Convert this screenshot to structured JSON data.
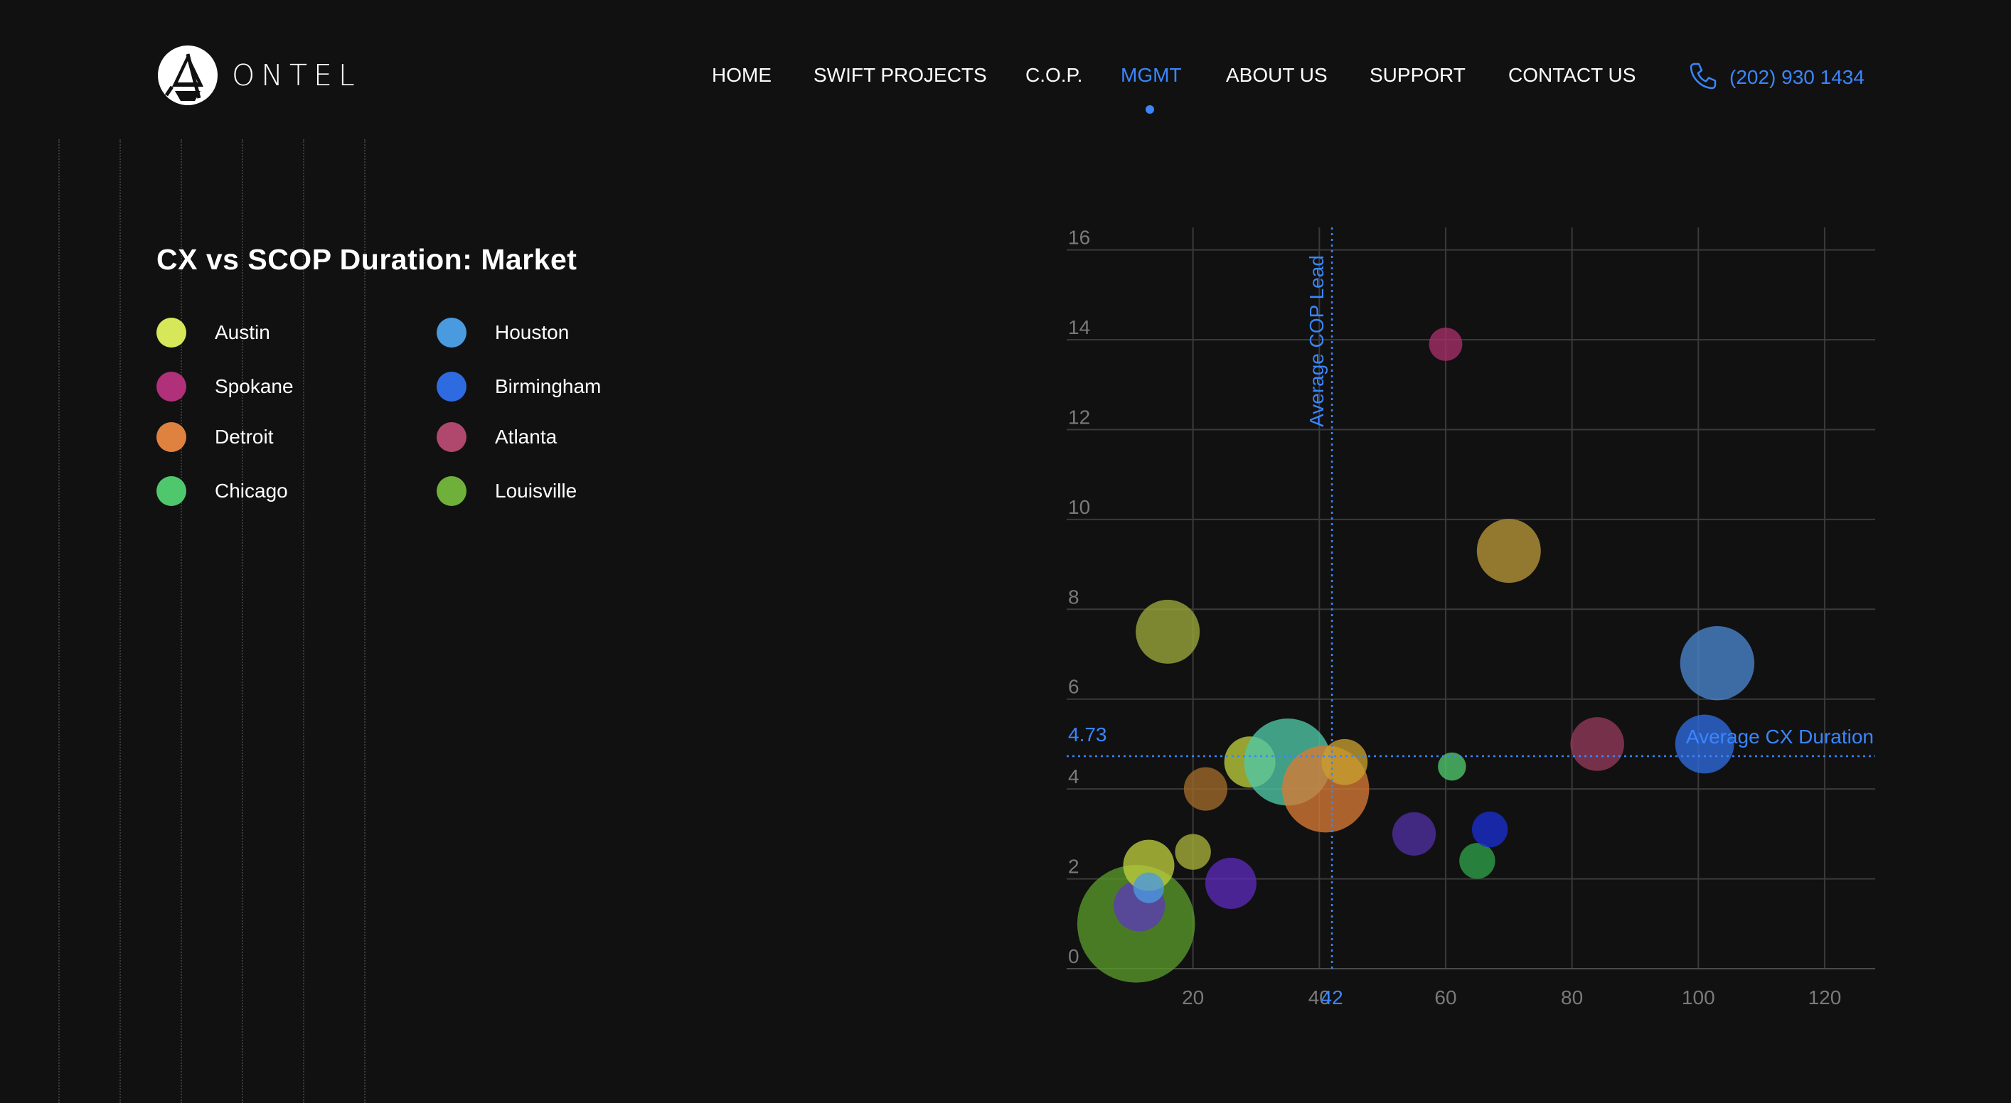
{
  "brand": {
    "name": "ONTEL"
  },
  "nav": {
    "items": [
      {
        "label": "HOME",
        "active": false
      },
      {
        "label": "SWIFT PROJECTS",
        "active": false
      },
      {
        "label": "C.O.P.",
        "active": false
      },
      {
        "label": "MGMT",
        "active": true
      },
      {
        "label": "ABOUT US",
        "active": false
      },
      {
        "label": "SUPPORT",
        "active": false
      },
      {
        "label": "CONTACT US",
        "active": false
      }
    ],
    "phone": "(202) 930 1434",
    "phone_icon": "phone-icon",
    "accent_color": "#3a86ff"
  },
  "chart_data": {
    "type": "scatter",
    "title": "CX vs SCOP Duration: Market",
    "xlim": [
      0,
      128
    ],
    "ylim": [
      0,
      16.5
    ],
    "xticks": [
      20,
      40,
      60,
      80,
      100,
      120
    ],
    "yticks": [
      0,
      2,
      4,
      6,
      8,
      10,
      12,
      14,
      16
    ],
    "grid": true,
    "legend_position": "top-left",
    "legend": [
      {
        "name": "Austin",
        "color": "#d6e85a"
      },
      {
        "name": "Spokane",
        "color": "#b0307a"
      },
      {
        "name": "Detroit",
        "color": "#e0823f"
      },
      {
        "name": "Chicago",
        "color": "#4fc86d"
      },
      {
        "name": "Houston",
        "color": "#4a9ae0"
      },
      {
        "name": "Birmingham",
        "color": "#2f6be0"
      },
      {
        "name": "Atlanta",
        "color": "#b0486e"
      },
      {
        "name": "Louisville",
        "color": "#6fb03a"
      }
    ],
    "reference_lines": {
      "x": {
        "value": 42,
        "label": "Average COP Lead",
        "tick_label": "42"
      },
      "y": {
        "value": 4.73,
        "label": "Average CX Duration",
        "tick_label": "4.73"
      }
    },
    "points": [
      {
        "x": 11,
        "y": 1,
        "size": 46,
        "color": "#5a9a2a"
      },
      {
        "x": 11.5,
        "y": 1.4,
        "size": 20,
        "color": "#5b3ab8"
      },
      {
        "x": 13,
        "y": 2.3,
        "size": 20,
        "color": "#bccd3c"
      },
      {
        "x": 13,
        "y": 1.8,
        "size": 12,
        "color": "#4a9ae0"
      },
      {
        "x": 16,
        "y": 7.5,
        "size": 25,
        "color": "#9ca83a"
      },
      {
        "x": 20,
        "y": 2.6,
        "size": 14,
        "color": "#a8b03a"
      },
      {
        "x": 22,
        "y": 4,
        "size": 17,
        "color": "#a06a2a"
      },
      {
        "x": 26,
        "y": 1.9,
        "size": 20,
        "color": "#5b2ab8"
      },
      {
        "x": 29,
        "y": 4.6,
        "size": 20,
        "color": "#bccd3c"
      },
      {
        "x": 35,
        "y": 4.6,
        "size": 34,
        "color": "#4fc8a8"
      },
      {
        "x": 41,
        "y": 4,
        "size": 34,
        "color": "#d97a35"
      },
      {
        "x": 44,
        "y": 4.6,
        "size": 18,
        "color": "#c8a030"
      },
      {
        "x": 55,
        "y": 3,
        "size": 17,
        "color": "#5030a0"
      },
      {
        "x": 60,
        "y": 13.9,
        "size": 13,
        "color": "#a8306a"
      },
      {
        "x": 61,
        "y": 4.5,
        "size": 11,
        "color": "#4fc86d"
      },
      {
        "x": 65,
        "y": 2.4,
        "size": 14,
        "color": "#2fa04a"
      },
      {
        "x": 67,
        "y": 3.1,
        "size": 14,
        "color": "#1a2ed0"
      },
      {
        "x": 70,
        "y": 9.3,
        "size": 25,
        "color": "#b8963a"
      },
      {
        "x": 84,
        "y": 5,
        "size": 21,
        "color": "#953a5a"
      },
      {
        "x": 101,
        "y": 5,
        "size": 23,
        "color": "#2f6be0"
      },
      {
        "x": 103,
        "y": 6.8,
        "size": 29,
        "color": "#4a86d0"
      }
    ]
  }
}
